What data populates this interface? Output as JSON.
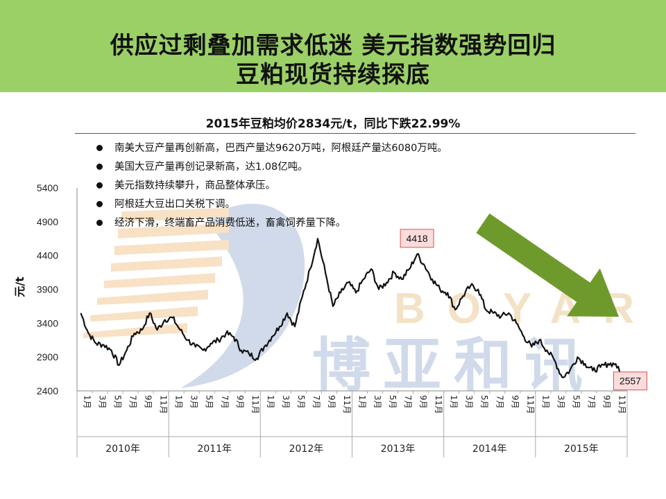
{
  "header": {
    "title_line1": "供应过剩叠加需求低迷  美元指数强势回归",
    "title_line2": "豆粕现货持续探底"
  },
  "subtitle": "2015年豆粕均价2834元/t，同比下跌22.99%",
  "bullets": [
    "南美大豆产量再创新高，巴西产量达9620万吨，阿根廷产量达6080万吨。",
    "美国大豆产量再创记录新高，达1.08亿吨。",
    "美元指数持续攀升，商品整体承压。",
    "阿根廷大豆出口关税下调。",
    "经济下滑，终端畜产品消费低迷，畜禽饲养量下降。"
  ],
  "watermark": {
    "latin": "BOYAR",
    "chinese": "博亚和讯"
  },
  "colors": {
    "header_bg": "#9bd067",
    "line": "#111111",
    "arrow": "#6e9a2c",
    "callout_bg": "#fbdcdc",
    "callout_border": "#d9534f"
  },
  "chart_data": {
    "type": "line",
    "title": "2015年豆粕均价2834元/t，同比下跌22.99%",
    "ylabel": "元/t",
    "ylim": [
      2400,
      5400
    ],
    "yticks": [
      2400,
      2900,
      3400,
      3900,
      4400,
      4900,
      5400
    ],
    "month_labels": [
      "1月",
      "3月",
      "5月",
      "7月",
      "9月",
      "11月"
    ],
    "year_labels": [
      "2010年",
      "2011年",
      "2012年",
      "2013年",
      "2014年",
      "2015年"
    ],
    "x_range": [
      "2010-01",
      "2015-12"
    ],
    "annotations": [
      {
        "label": "4418",
        "date": "2013-09",
        "value": 4418
      },
      {
        "label": "2557",
        "date": "2015-12",
        "value": 2557
      }
    ],
    "series": [
      {
        "x": [
          "2010-01",
          "2010-02",
          "2010-03",
          "2010-04",
          "2010-05",
          "2010-06",
          "2010-07",
          "2010-08",
          "2010-09",
          "2010-10",
          "2010-11",
          "2010-12",
          "2011-01",
          "2011-02",
          "2011-03",
          "2011-04",
          "2011-05",
          "2011-06",
          "2011-07",
          "2011-08",
          "2011-09",
          "2011-10",
          "2011-11",
          "2011-12",
          "2012-01",
          "2012-02",
          "2012-03",
          "2012-04",
          "2012-05",
          "2012-06",
          "2012-07",
          "2012-08",
          "2012-09",
          "2012-10",
          "2012-11",
          "2012-12",
          "2013-01",
          "2013-02",
          "2013-03",
          "2013-04",
          "2013-05",
          "2013-06",
          "2013-07",
          "2013-08",
          "2013-09",
          "2013-10",
          "2013-11",
          "2013-12",
          "2014-01",
          "2014-02",
          "2014-03",
          "2014-04",
          "2014-05",
          "2014-06",
          "2014-07",
          "2014-08",
          "2014-09",
          "2014-10",
          "2014-11",
          "2014-12",
          "2015-01",
          "2015-02",
          "2015-03",
          "2015-04",
          "2015-05",
          "2015-06",
          "2015-07",
          "2015-08",
          "2015-09",
          "2015-10",
          "2015-11",
          "2015-12"
        ],
        "values": [
          3550,
          3250,
          3100,
          3080,
          3000,
          2780,
          3000,
          3250,
          3300,
          3550,
          3300,
          3450,
          3480,
          3300,
          3150,
          3050,
          3000,
          3100,
          3150,
          3250,
          3200,
          3000,
          2950,
          2880,
          3050,
          3200,
          3350,
          3550,
          3350,
          3800,
          4200,
          4650,
          4150,
          3650,
          3850,
          4000,
          3850,
          4050,
          4200,
          3900,
          4000,
          4150,
          4050,
          4200,
          4418,
          4250,
          4050,
          3900,
          3850,
          3600,
          3800,
          3950,
          3900,
          3600,
          3550,
          3500,
          3550,
          3400,
          3200,
          3050,
          3150,
          3000,
          2850,
          2600,
          2700,
          2900,
          2800,
          2700,
          2750,
          2800,
          2800,
          2557
        ]
      }
    ]
  }
}
